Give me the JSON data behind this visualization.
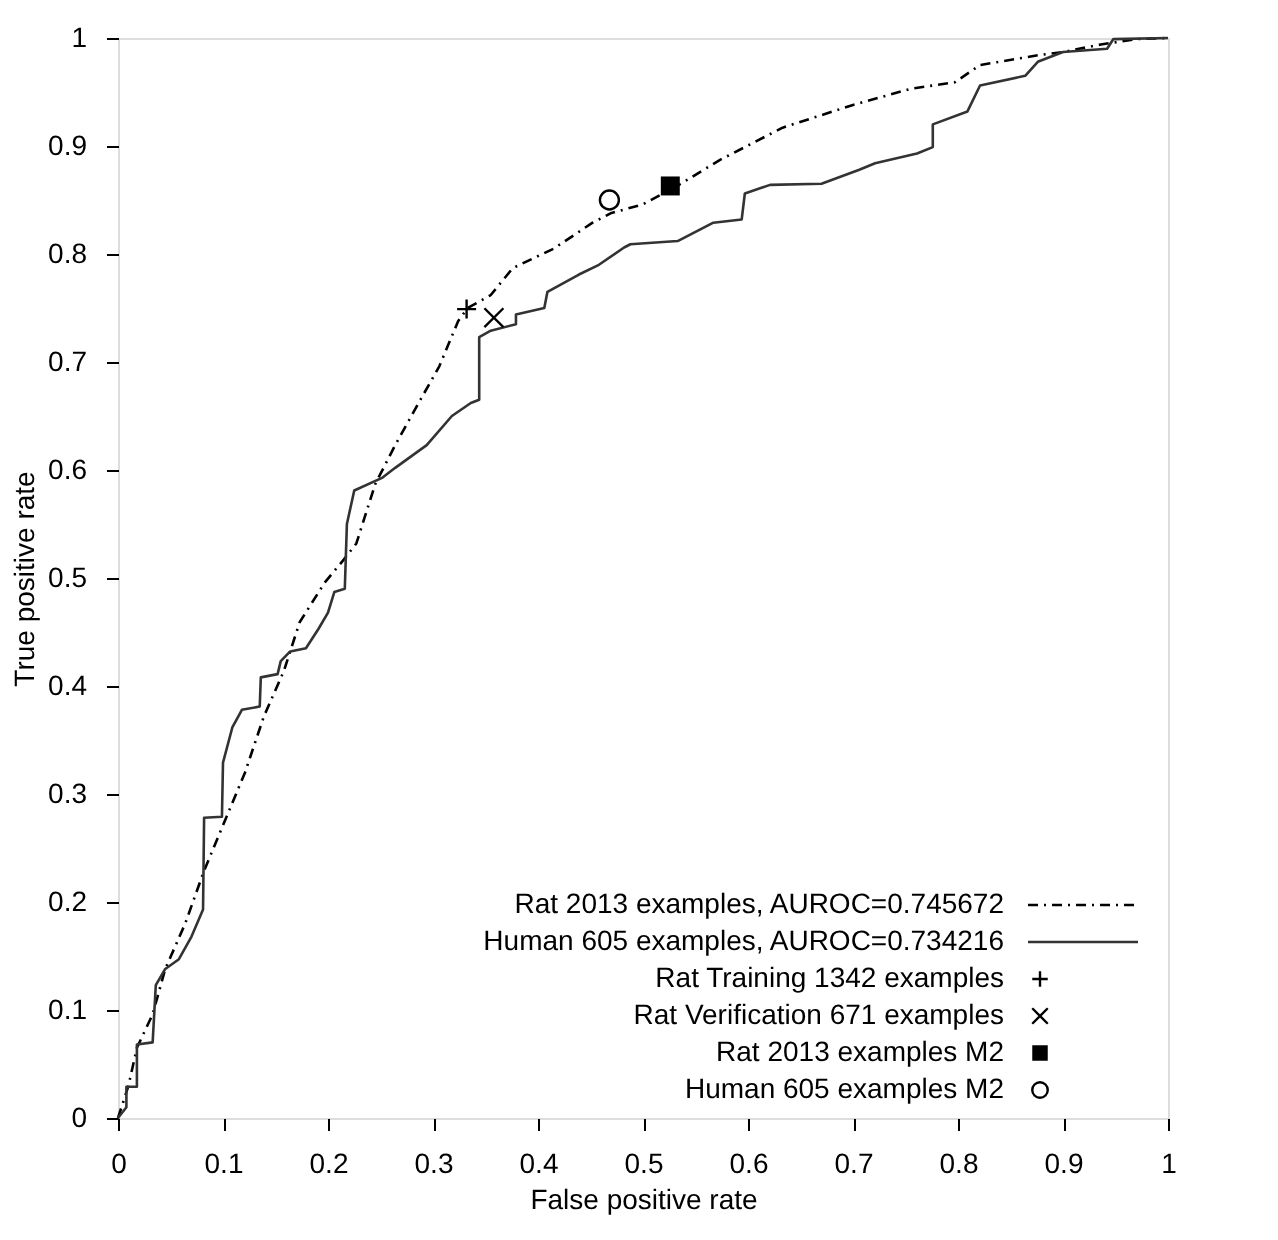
{
  "chart_data": {
    "type": "line",
    "xlabel": "False positive rate",
    "ylabel": "True positive rate",
    "xlim": [
      0,
      1
    ],
    "ylim": [
      0,
      1
    ],
    "xticks": [
      0,
      0.1,
      0.2,
      0.3,
      0.4,
      0.5,
      0.6,
      0.7,
      0.8,
      0.9,
      1
    ],
    "yticks": [
      0,
      0.1,
      0.2,
      0.3,
      0.4,
      0.5,
      0.6,
      0.7,
      0.8,
      0.9,
      1
    ],
    "grid": false,
    "legend": "bottom right",
    "series": [
      {
        "name": "Rat 2013 examples, AUROC=0.745672",
        "type": "line",
        "line_style": "dashdot",
        "marker": "none",
        "color": "#000000",
        "x": [
          0,
          0.01,
          0.018,
          0.033,
          0.045,
          0.064,
          0.082,
          0.103,
          0.121,
          0.139,
          0.158,
          0.173,
          0.197,
          0.215,
          0.227,
          0.245,
          0.264,
          0.288,
          0.306,
          0.324,
          0.333,
          0.355,
          0.376,
          0.415,
          0.452,
          0.47,
          0.5,
          0.536,
          0.573,
          0.633,
          0.7,
          0.755,
          0.797,
          0.821,
          0.876,
          0.9,
          0.936,
          0.97,
          1
        ],
        "values": [
          0,
          0.03,
          0.065,
          0.096,
          0.138,
          0.18,
          0.229,
          0.278,
          0.32,
          0.372,
          0.414,
          0.459,
          0.496,
          0.517,
          0.532,
          0.587,
          0.623,
          0.665,
          0.696,
          0.738,
          0.75,
          0.762,
          0.787,
          0.805,
          0.829,
          0.838,
          0.846,
          0.865,
          0.887,
          0.917,
          0.938,
          0.953,
          0.959,
          0.975,
          0.984,
          0.987,
          0.994,
          0.999,
          1
        ]
      },
      {
        "name": "Human 605 examples, AUROC=0.734216",
        "type": "line",
        "line_style": "solid",
        "marker": "none",
        "color": "#333333",
        "x": [
          0,
          0.008,
          0.008,
          0.018,
          0.018,
          0.033,
          0.036,
          0.045,
          0.058,
          0.07,
          0.081,
          0.082,
          0.099,
          0.1,
          0.109,
          0.118,
          0.135,
          0.136,
          0.152,
          0.155,
          0.164,
          0.179,
          0.191,
          0.2,
          0.206,
          0.216,
          0.217,
          0.218,
          0.225,
          0.252,
          0.264,
          0.294,
          0.318,
          0.336,
          0.344,
          0.344,
          0.355,
          0.379,
          0.379,
          0.406,
          0.409,
          0.439,
          0.458,
          0.482,
          0.488,
          0.533,
          0.567,
          0.594,
          0.597,
          0.621,
          0.67,
          0.706,
          0.721,
          0.761,
          0.776,
          0.776,
          0.809,
          0.821,
          0.864,
          0.876,
          0.9,
          0.942,
          0.948,
          1
        ],
        "values": [
          0,
          0.01,
          0.029,
          0.029,
          0.068,
          0.07,
          0.123,
          0.138,
          0.147,
          0.168,
          0.193,
          0.278,
          0.279,
          0.329,
          0.362,
          0.378,
          0.381,
          0.408,
          0.411,
          0.423,
          0.432,
          0.435,
          0.453,
          0.468,
          0.487,
          0.49,
          0.52,
          0.55,
          0.581,
          0.593,
          0.602,
          0.623,
          0.65,
          0.662,
          0.665,
          0.723,
          0.729,
          0.735,
          0.744,
          0.75,
          0.765,
          0.781,
          0.79,
          0.806,
          0.809,
          0.812,
          0.829,
          0.832,
          0.856,
          0.864,
          0.865,
          0.878,
          0.884,
          0.893,
          0.899,
          0.92,
          0.932,
          0.956,
          0.965,
          0.978,
          0.987,
          0.99,
          0.999,
          1
        ]
      },
      {
        "name": "Rat Training 1342 examples",
        "type": "scatter",
        "marker": "cross",
        "color": "#000000",
        "x": [
          0.332
        ],
        "values": [
          0.749
        ]
      },
      {
        "name": "Rat Verification  671 examples",
        "type": "scatter",
        "marker": "x",
        "color": "#000000",
        "x": [
          0.358
        ],
        "values": [
          0.741
        ]
      },
      {
        "name": "Rat 2013 examples M2",
        "type": "scatter",
        "marker": "square",
        "color": "#000000",
        "x": [
          0.526
        ],
        "values": [
          0.863
        ]
      },
      {
        "name": "Human 605 examples M2",
        "type": "scatter",
        "marker": "circle",
        "color": "#000000",
        "x": [
          0.468
        ],
        "values": [
          0.85
        ]
      }
    ]
  }
}
